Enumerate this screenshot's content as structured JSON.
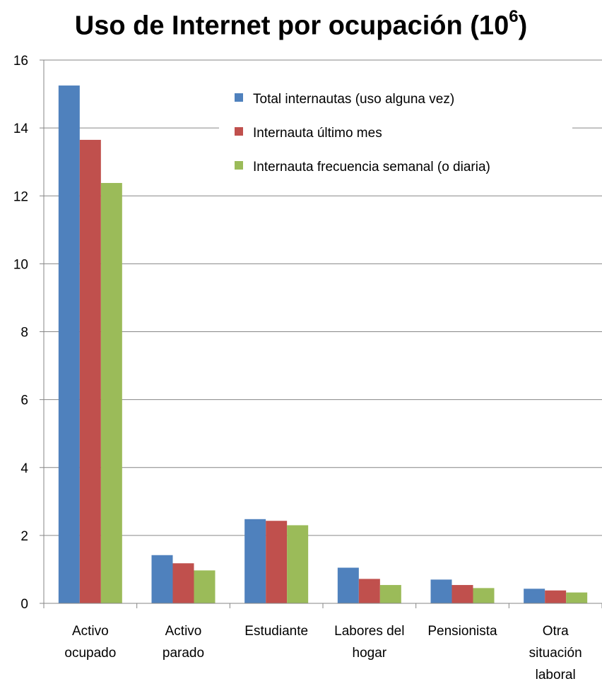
{
  "title_main": "Uso de Internet por ocupación (10",
  "title_exp": "6",
  "title_close": ")",
  "colors": {
    "series": [
      "#4f81bd",
      "#c0504d",
      "#9bbb59"
    ],
    "grid": "#868686",
    "axis": "#868686"
  },
  "chart_data": {
    "type": "bar",
    "title": "Uso de Internet por ocupación (10⁶)",
    "xlabel": "",
    "ylabel": "",
    "ylim": [
      0,
      16
    ],
    "yticks": [
      0,
      2,
      4,
      6,
      8,
      10,
      12,
      14,
      16
    ],
    "grid": true,
    "legend_position": "top-right",
    "categories": [
      [
        "Activo",
        "ocupado"
      ],
      [
        "Activo",
        "parado"
      ],
      [
        "Estudiante"
      ],
      [
        "Labores del",
        "hogar"
      ],
      [
        "Pensionista"
      ],
      [
        "Otra",
        "situación",
        "laboral"
      ]
    ],
    "series": [
      {
        "name": "Total internautas (uso alguna vez)",
        "values": [
          15.25,
          1.42,
          2.48,
          1.05,
          0.7,
          0.43
        ]
      },
      {
        "name": "Internauta último mes",
        "values": [
          13.65,
          1.18,
          2.43,
          0.72,
          0.54,
          0.38
        ]
      },
      {
        "name": "Internauta frecuencia semanal (o diaria)",
        "values": [
          12.38,
          0.97,
          2.3,
          0.54,
          0.45,
          0.32
        ]
      }
    ]
  }
}
